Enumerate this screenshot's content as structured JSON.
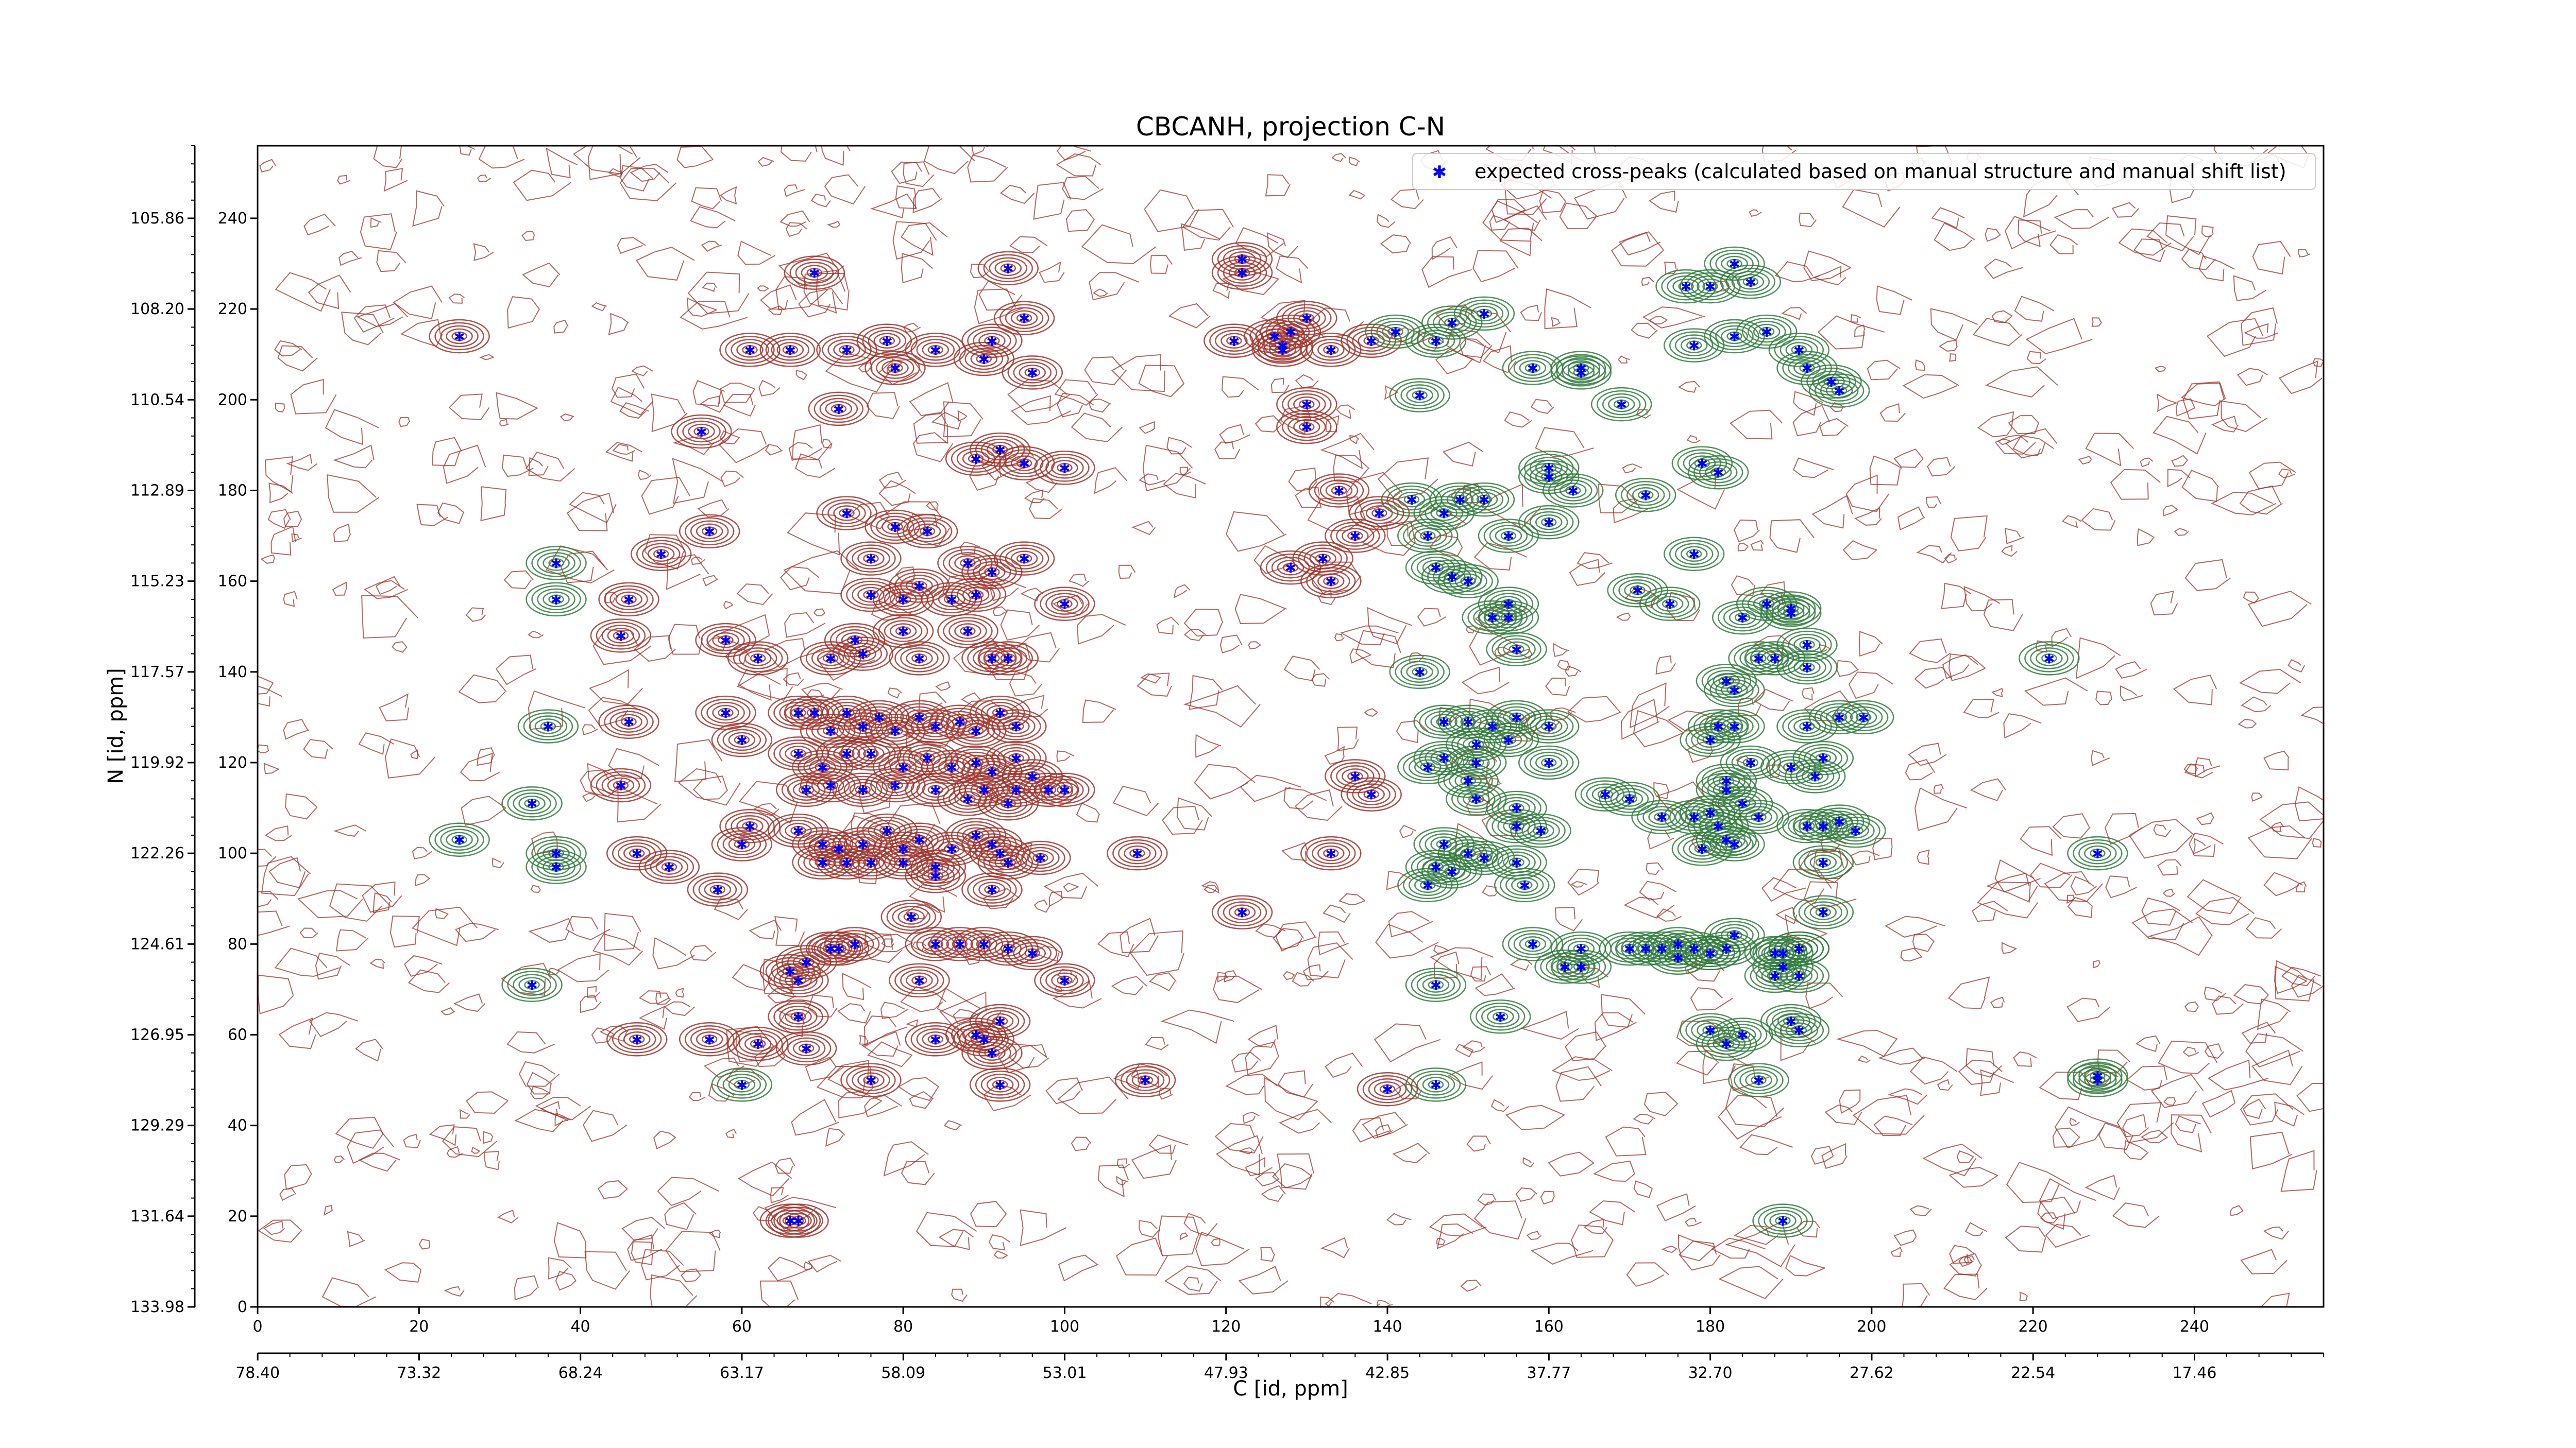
{
  "chart_data": {
    "type": "scatter",
    "title": "CBCANH, projection C-N",
    "xlabel": "C [id, ppm]",
    "ylabel": "N [id, ppm]",
    "x_index_range": [
      0,
      256
    ],
    "y_index_range": [
      0,
      256
    ],
    "x_index_ticks": [
      0,
      20,
      40,
      60,
      80,
      100,
      120,
      140,
      160,
      180,
      200,
      220,
      240
    ],
    "y_index_ticks": [
      0,
      20,
      40,
      60,
      80,
      100,
      120,
      140,
      160,
      180,
      200,
      220,
      240
    ],
    "x_ppm_ticks": [
      "78.40",
      "73.32",
      "68.24",
      "63.17",
      "58.09",
      "53.01",
      "47.93",
      "42.85",
      "37.77",
      "32.70",
      "27.62",
      "22.54",
      "17.46"
    ],
    "y_ppm_ticks": [
      "133.98",
      "131.64",
      "129.29",
      "126.95",
      "124.61",
      "122.26",
      "119.92",
      "117.57",
      "115.23",
      "112.89",
      "110.54",
      "108.20",
      "105.86"
    ],
    "grid": false,
    "legend_position": "top-right",
    "series": [
      {
        "name": "expected cross-peaks (calculated based on manual structure and manual shift list)",
        "color": "#0000ff",
        "points": [
          [
            25,
            214
          ],
          [
            69,
            228
          ],
          [
            93,
            229
          ],
          [
            73,
            211
          ],
          [
            78,
            213
          ],
          [
            79,
            207
          ],
          [
            84,
            211
          ],
          [
            91,
            213
          ],
          [
            90,
            209
          ],
          [
            95,
            218
          ],
          [
            96,
            206
          ],
          [
            61,
            211
          ],
          [
            66,
            211
          ],
          [
            72,
            198
          ],
          [
            55,
            193
          ],
          [
            89,
            187
          ],
          [
            92,
            189
          ],
          [
            95,
            186
          ],
          [
            100,
            185
          ],
          [
            73,
            175
          ],
          [
            79,
            172
          ],
          [
            83,
            171
          ],
          [
            56,
            171
          ],
          [
            50,
            166
          ],
          [
            37,
            164
          ],
          [
            37,
            156
          ],
          [
            46,
            156
          ],
          [
            76,
            165
          ],
          [
            88,
            164
          ],
          [
            95,
            165
          ],
          [
            76,
            157
          ],
          [
            80,
            156
          ],
          [
            82,
            159
          ],
          [
            86,
            156
          ],
          [
            89,
            157
          ],
          [
            100,
            155
          ],
          [
            91,
            162
          ],
          [
            45,
            148
          ],
          [
            62,
            143
          ],
          [
            58,
            147
          ],
          [
            74,
            147
          ],
          [
            75,
            144
          ],
          [
            71,
            143
          ],
          [
            80,
            149
          ],
          [
            82,
            143
          ],
          [
            88,
            149
          ],
          [
            91,
            143
          ],
          [
            93,
            143
          ],
          [
            36,
            128
          ],
          [
            46,
            129
          ],
          [
            58,
            131
          ],
          [
            60,
            125
          ],
          [
            67,
            131
          ],
          [
            69,
            131
          ],
          [
            71,
            127
          ],
          [
            73,
            131
          ],
          [
            75,
            128
          ],
          [
            77,
            130
          ],
          [
            79,
            127
          ],
          [
            82,
            130
          ],
          [
            84,
            128
          ],
          [
            87,
            129
          ],
          [
            89,
            127
          ],
          [
            92,
            131
          ],
          [
            94,
            128
          ],
          [
            67,
            122
          ],
          [
            70,
            119
          ],
          [
            73,
            122
          ],
          [
            76,
            122
          ],
          [
            80,
            119
          ],
          [
            83,
            121
          ],
          [
            86,
            119
          ],
          [
            89,
            120
          ],
          [
            91,
            118
          ],
          [
            94,
            121
          ],
          [
            96,
            117
          ],
          [
            98,
            114
          ],
          [
            100,
            114
          ],
          [
            68,
            114
          ],
          [
            71,
            115
          ],
          [
            75,
            114
          ],
          [
            79,
            115
          ],
          [
            84,
            114
          ],
          [
            88,
            112
          ],
          [
            90,
            114
          ],
          [
            93,
            111
          ],
          [
            94,
            114
          ],
          [
            34,
            111
          ],
          [
            45,
            115
          ],
          [
            61,
            106
          ],
          [
            60,
            102
          ],
          [
            67,
            105
          ],
          [
            70,
            102
          ],
          [
            72,
            101
          ],
          [
            75,
            102
          ],
          [
            78,
            105
          ],
          [
            80,
            101
          ],
          [
            82,
            103
          ],
          [
            84,
            97
          ],
          [
            86,
            101
          ],
          [
            89,
            104
          ],
          [
            91,
            102
          ],
          [
            92,
            100
          ],
          [
            93,
            98
          ],
          [
            97,
            99
          ],
          [
            25,
            103
          ],
          [
            37,
            100
          ],
          [
            37,
            97
          ],
          [
            47,
            100
          ],
          [
            51,
            97
          ],
          [
            57,
            92
          ],
          [
            70,
            98
          ],
          [
            73,
            98
          ],
          [
            76,
            98
          ],
          [
            80,
            98
          ],
          [
            84,
            95
          ],
          [
            91,
            92
          ],
          [
            109,
            100
          ],
          [
            122,
            87
          ],
          [
            133,
            100
          ],
          [
            81,
            86
          ],
          [
            84,
            80
          ],
          [
            87,
            80
          ],
          [
            71,
            79
          ],
          [
            68,
            76
          ],
          [
            72,
            79
          ],
          [
            74,
            80
          ],
          [
            66,
            74
          ],
          [
            67,
            72
          ],
          [
            82,
            72
          ],
          [
            90,
            80
          ],
          [
            93,
            79
          ],
          [
            96,
            78
          ],
          [
            100,
            72
          ],
          [
            34,
            71
          ],
          [
            47,
            59
          ],
          [
            56,
            59
          ],
          [
            62,
            58
          ],
          [
            67,
            64
          ],
          [
            68,
            57
          ],
          [
            84,
            59
          ],
          [
            89,
            60
          ],
          [
            92,
            63
          ],
          [
            90,
            59
          ],
          [
            91,
            56
          ],
          [
            60,
            49
          ],
          [
            76,
            50
          ],
          [
            92,
            49
          ],
          [
            110,
            50
          ],
          [
            66,
            19
          ],
          [
            67,
            19
          ],
          [
            122,
            231
          ],
          [
            122,
            228
          ],
          [
            121,
            213
          ],
          [
            127,
            212
          ],
          [
            126,
            214
          ],
          [
            127,
            211
          ],
          [
            130,
            218
          ],
          [
            128,
            215
          ],
          [
            133,
            211
          ],
          [
            138,
            213
          ],
          [
            130,
            199
          ],
          [
            130,
            194
          ],
          [
            141,
            215
          ],
          [
            146,
            213
          ],
          [
            148,
            217
          ],
          [
            152,
            219
          ],
          [
            149,
            178
          ],
          [
            143,
            178
          ],
          [
            147,
            175
          ],
          [
            145,
            170
          ],
          [
            146,
            163
          ],
          [
            148,
            161
          ],
          [
            150,
            160
          ],
          [
            152,
            178
          ],
          [
            155,
            152
          ],
          [
            153,
            152
          ],
          [
            155,
            155
          ],
          [
            156,
            145
          ],
          [
            144,
            140
          ],
          [
            147,
            129
          ],
          [
            150,
            129
          ],
          [
            151,
            124
          ],
          [
            153,
            128
          ],
          [
            155,
            125
          ],
          [
            156,
            130
          ],
          [
            160,
            128
          ],
          [
            147,
            121
          ],
          [
            151,
            120
          ],
          [
            150,
            116
          ],
          [
            151,
            112
          ],
          [
            156,
            110
          ],
          [
            156,
            106
          ],
          [
            160,
            120
          ],
          [
            167,
            113
          ],
          [
            147,
            102
          ],
          [
            148,
            96
          ],
          [
            150,
            100
          ],
          [
            145,
            93
          ],
          [
            159,
            105
          ],
          [
            156,
            98
          ],
          [
            138,
            113
          ],
          [
            136,
            117
          ],
          [
            152,
            99
          ],
          [
            157,
            93
          ],
          [
            146,
            97
          ],
          [
            145,
            119
          ],
          [
            164,
            207
          ],
          [
            160,
            183
          ],
          [
            160,
            173
          ],
          [
            155,
            170
          ],
          [
            171,
            158
          ],
          [
            175,
            155
          ],
          [
            179,
            186
          ],
          [
            181,
            184
          ],
          [
            178,
            166
          ],
          [
            170,
            112
          ],
          [
            174,
            108
          ],
          [
            178,
            108
          ],
          [
            182,
            114
          ],
          [
            180,
            109
          ],
          [
            181,
            106
          ],
          [
            179,
            101
          ],
          [
            182,
            103
          ],
          [
            183,
            102
          ],
          [
            186,
            108
          ],
          [
            184,
            111
          ],
          [
            182,
            116
          ],
          [
            185,
            120
          ],
          [
            181,
            128
          ],
          [
            180,
            125
          ],
          [
            183,
            128
          ],
          [
            182,
            138
          ],
          [
            186,
            143
          ],
          [
            183,
            136
          ],
          [
            184,
            152
          ],
          [
            187,
            155
          ],
          [
            192,
            141
          ],
          [
            190,
            154
          ],
          [
            190,
            153
          ],
          [
            188,
            143
          ],
          [
            192,
            146
          ],
          [
            196,
            130
          ],
          [
            199,
            130
          ],
          [
            192,
            128
          ],
          [
            194,
            121
          ],
          [
            193,
            117
          ],
          [
            190,
            119
          ],
          [
            192,
            106
          ],
          [
            196,
            107
          ],
          [
            194,
            106
          ],
          [
            198,
            105
          ],
          [
            194,
            98
          ],
          [
            194,
            87
          ],
          [
            191,
            79
          ],
          [
            191,
            73
          ],
          [
            188,
            78
          ],
          [
            188,
            73
          ],
          [
            180,
            61
          ],
          [
            182,
            58
          ],
          [
            184,
            60
          ],
          [
            186,
            50
          ],
          [
            191,
            61
          ],
          [
            164,
            79
          ],
          [
            170,
            79
          ],
          [
            172,
            79
          ],
          [
            174,
            79
          ],
          [
            178,
            79
          ],
          [
            182,
            79
          ],
          [
            180,
            78
          ],
          [
            162,
            75
          ],
          [
            158,
            80
          ],
          [
            146,
            71
          ],
          [
            140,
            48
          ],
          [
            146,
            49
          ],
          [
            154,
            64
          ],
          [
            176,
            80
          ],
          [
            180,
            78
          ],
          [
            183,
            82
          ],
          [
            189,
            78
          ],
          [
            189,
            75
          ],
          [
            191,
            79
          ],
          [
            190,
            63
          ],
          [
            176,
            77
          ],
          [
            164,
            75
          ],
          [
            183,
            230
          ],
          [
            180,
            225
          ],
          [
            177,
            225
          ],
          [
            185,
            226
          ],
          [
            187,
            215
          ],
          [
            178,
            212
          ],
          [
            183,
            214
          ],
          [
            191,
            211
          ],
          [
            192,
            207
          ],
          [
            195,
            204
          ],
          [
            196,
            202
          ],
          [
            222,
            143
          ],
          [
            228,
            100
          ],
          [
            228,
            51
          ],
          [
            228,
            50
          ],
          [
            189,
            19
          ],
          [
            158,
            207
          ],
          [
            164,
            206
          ],
          [
            144,
            201
          ],
          [
            169,
            199
          ],
          [
            172,
            179
          ],
          [
            160,
            185
          ],
          [
            163,
            180
          ],
          [
            134,
            180
          ],
          [
            139,
            175
          ],
          [
            136,
            170
          ],
          [
            132,
            165
          ],
          [
            128,
            163
          ],
          [
            133,
            160
          ]
        ]
      }
    ]
  }
}
